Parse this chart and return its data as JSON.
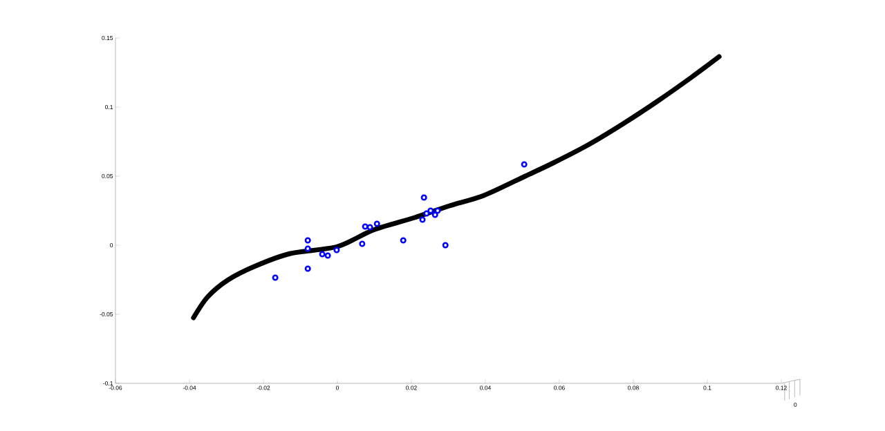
{
  "chart_data": {
    "type": "scatter",
    "xlim": [
      -0.06,
      0.12
    ],
    "ylim": [
      -0.1,
      0.15
    ],
    "xticks": [
      -0.06,
      -0.04,
      -0.02,
      0,
      0.02,
      0.04,
      0.06,
      0.08,
      0.1,
      0.12
    ],
    "yticks": [
      -0.1,
      -0.05,
      0,
      0.05,
      0.1,
      0.15
    ],
    "grid": false,
    "marker": "circle",
    "annotations": [
      "0"
    ],
    "series": [
      {
        "type": "line",
        "marker": "none",
        "color": "#000000",
        "line_style": "solid",
        "x": [
          -0.0389,
          -0.0351,
          -0.0295,
          -0.0221,
          -0.0127,
          0,
          0.0097,
          0.0209,
          0.0303,
          0.0396,
          0.0508,
          0.0583,
          0.0677,
          0.077,
          0.0864,
          0.0957,
          0.1032
        ],
        "values": [
          -0.0525,
          -0.0375,
          -0.025,
          -0.015,
          -0.006,
          -0.001,
          0.011,
          0.02,
          0.0285,
          0.036,
          0.05,
          0.0595,
          0.0725,
          0.0875,
          0.104,
          0.1215,
          0.1365
        ]
      },
      {
        "color": "#0000ff",
        "x": [
          -0.0168,
          -0.008,
          -0.008,
          -0.008,
          -0.0041,
          -0.0026,
          -0.0002,
          0.0067,
          0.0075,
          0.0088,
          0.0107,
          0.0178,
          0.0234,
          0.023,
          0.0241,
          0.0252,
          0.0264,
          0.0271,
          0.0292,
          0.0505
        ],
        "values": [
          -0.0235,
          0.0035,
          -0.0025,
          -0.017,
          -0.0065,
          -0.0075,
          -0.0035,
          0.001,
          0.0135,
          0.013,
          0.0155,
          0.0035,
          0.0345,
          0.0185,
          0.023,
          0.025,
          0.022,
          0.025,
          0,
          0.0585
        ]
      }
    ]
  }
}
